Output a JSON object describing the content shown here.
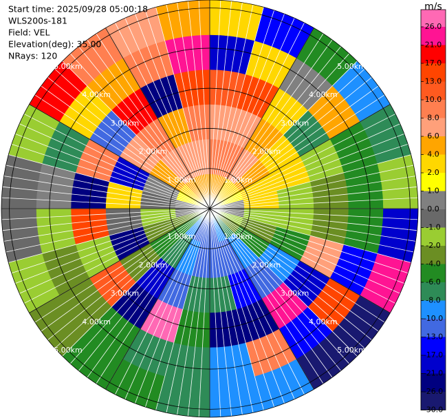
{
  "chart_data": {
    "type": "radar",
    "info": [
      "Start time: 2025/09/28 05:00:18",
      "WLS200s-181",
      "Field: VEL",
      "Elevation(deg): 35.00",
      "NRays: 120"
    ],
    "rlim": [
      0,
      5.2
    ],
    "range_rings": [
      {
        "value": 1,
        "label": "1.00km"
      },
      {
        "value": 2,
        "label": "2.00km"
      },
      {
        "value": 3,
        "label": "3.00km"
      },
      {
        "value": 4,
        "label": "4.00km"
      },
      {
        "value": 5,
        "label": "5.00km"
      }
    ],
    "field": [
      [
        4,
        8,
        6,
        10,
        -21,
        3
      ],
      [
        4,
        8,
        6,
        13,
        2,
        -17
      ],
      [
        2,
        6,
        4,
        3,
        0.5,
        -6
      ],
      [
        2,
        4,
        3,
        -8,
        5,
        -9
      ],
      [
        1.5,
        3,
        2,
        -1.5,
        -5,
        -7
      ],
      [
        0.5,
        2,
        -1.5,
        -3,
        -5,
        -1.5
      ],
      [
        -0.5,
        -1.5,
        -1.5,
        -3,
        -5,
        -18
      ],
      [
        -1.5,
        -3,
        -5,
        7,
        -14,
        24
      ],
      [
        -3,
        -5,
        -9,
        -19,
        15,
        -28
      ],
      [
        -7,
        -9,
        -11,
        22,
        -15,
        -27
      ],
      [
        -9,
        -11,
        -15,
        -23,
        9,
        -9
      ],
      [
        -11,
        -11,
        -7,
        -24,
        -9,
        -9
      ],
      [
        -11,
        -11,
        -7,
        -5,
        -7,
        -7
      ],
      [
        -11,
        -9,
        -12,
        28,
        -7,
        -5
      ],
      [
        -9,
        -7,
        -18,
        -22,
        -5,
        -5
      ],
      [
        -5,
        -5,
        -3,
        11,
        -3,
        -3
      ],
      [
        -3,
        -3,
        -22,
        -1.5,
        -3,
        -1.5
      ],
      [
        -0.5,
        -1.5,
        -0.5,
        16,
        -1.5,
        -0.5
      ],
      [
        0.5,
        -0.5,
        3,
        -26,
        0.5,
        -0.5
      ],
      [
        1.5,
        0.5,
        -20,
        9,
        -7,
        -1.5
      ],
      [
        3,
        5,
        7,
        -12,
        3,
        18
      ],
      [
        5,
        7,
        9,
        20,
        5,
        9
      ],
      [
        5,
        7,
        5,
        -25,
        9,
        7
      ],
      [
        4,
        7,
        9,
        14,
        25,
        4
      ]
    ],
    "colorbar": {
      "unit": "m/s",
      "ticks": [
        {
          "value": 26,
          "label": "26.0"
        },
        {
          "value": 21,
          "label": "21.0"
        },
        {
          "value": 17,
          "label": "17.0"
        },
        {
          "value": 13,
          "label": "13.0"
        },
        {
          "value": 10,
          "label": "10.0"
        },
        {
          "value": 8,
          "label": "8.0"
        },
        {
          "value": 6,
          "label": "6.0"
        },
        {
          "value": 4,
          "label": "4.0"
        },
        {
          "value": 2,
          "label": "2.0"
        },
        {
          "value": 1,
          "label": "1.0"
        },
        {
          "value": 0,
          "label": "0.0"
        },
        {
          "value": -1,
          "label": "-1.0"
        },
        {
          "value": -2,
          "label": "-2.0"
        },
        {
          "value": -4,
          "label": "-4.0"
        },
        {
          "value": -6,
          "label": "-6.0"
        },
        {
          "value": -8,
          "label": "-8.0"
        },
        {
          "value": -10,
          "label": "-10.0"
        },
        {
          "value": -13,
          "label": "-13.0"
        },
        {
          "value": -17,
          "label": "-17.0"
        },
        {
          "value": -21,
          "label": "-21.0"
        },
        {
          "value": -26,
          "label": "-26.0"
        },
        {
          "value": -30,
          "label": "-30.0"
        }
      ],
      "colors": [
        "#ff69b4",
        "#ff1493",
        "#ff0000",
        "#ff4500",
        "#ff5a1f",
        "#ff7f50",
        "#ffa07a",
        "#ffa500",
        "#ffd700",
        "#ffff00",
        "#808080",
        "#696969",
        "#9acd32",
        "#6b8e23",
        "#228b22",
        "#2e8b57",
        "#1e90ff",
        "#4169e1",
        "#0000ff",
        "#0000cd",
        "#000080",
        "#191970"
      ]
    }
  }
}
